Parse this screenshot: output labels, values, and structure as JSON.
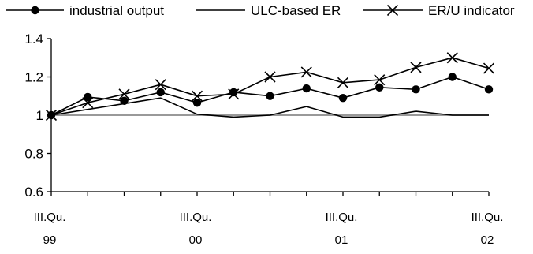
{
  "chart_data": {
    "type": "line",
    "title": "",
    "xlabel": "",
    "ylabel": "",
    "ylim": [
      0.6,
      1.4
    ],
    "yticks": [
      0.6,
      0.8,
      1,
      1.2,
      1.4
    ],
    "ytick_labels": [
      "0.6",
      "0.8",
      "1",
      "1.2",
      "1.4"
    ],
    "grid": false,
    "legend_position": "top",
    "reference_line": {
      "y": 1,
      "color": "#999999"
    },
    "x": [
      0,
      1,
      2,
      3,
      4,
      5,
      6,
      7,
      8,
      9,
      10,
      11,
      12
    ],
    "xtick_labels": [
      {
        "x": 0,
        "line1": "III.Qu.",
        "line2": "99"
      },
      {
        "x": 4,
        "line1": "III.Qu.",
        "line2": "00"
      },
      {
        "x": 8,
        "line1": "III.Qu.",
        "line2": "01"
      },
      {
        "x": 12,
        "line1": "III.Qu.",
        "line2": "02"
      }
    ],
    "series": [
      {
        "name": "industrial output",
        "marker": "circle",
        "color": "#000000",
        "values": [
          1.0,
          1.095,
          1.075,
          1.12,
          1.065,
          1.12,
          1.1,
          1.14,
          1.09,
          1.145,
          1.135,
          1.2,
          1.135
        ]
      },
      {
        "name": "ULC-based ER",
        "marker": "none",
        "color": "#000000",
        "values": [
          1.0,
          1.03,
          1.06,
          1.09,
          1.005,
          0.99,
          1.0,
          1.045,
          0.99,
          0.99,
          1.02,
          1.0,
          1.0
        ]
      },
      {
        "name": "ER/U indicator",
        "marker": "x",
        "color": "#000000",
        "values": [
          1.0,
          1.065,
          1.11,
          1.16,
          1.1,
          1.11,
          1.2,
          1.225,
          1.17,
          1.185,
          1.25,
          1.3,
          1.245
        ]
      }
    ]
  }
}
